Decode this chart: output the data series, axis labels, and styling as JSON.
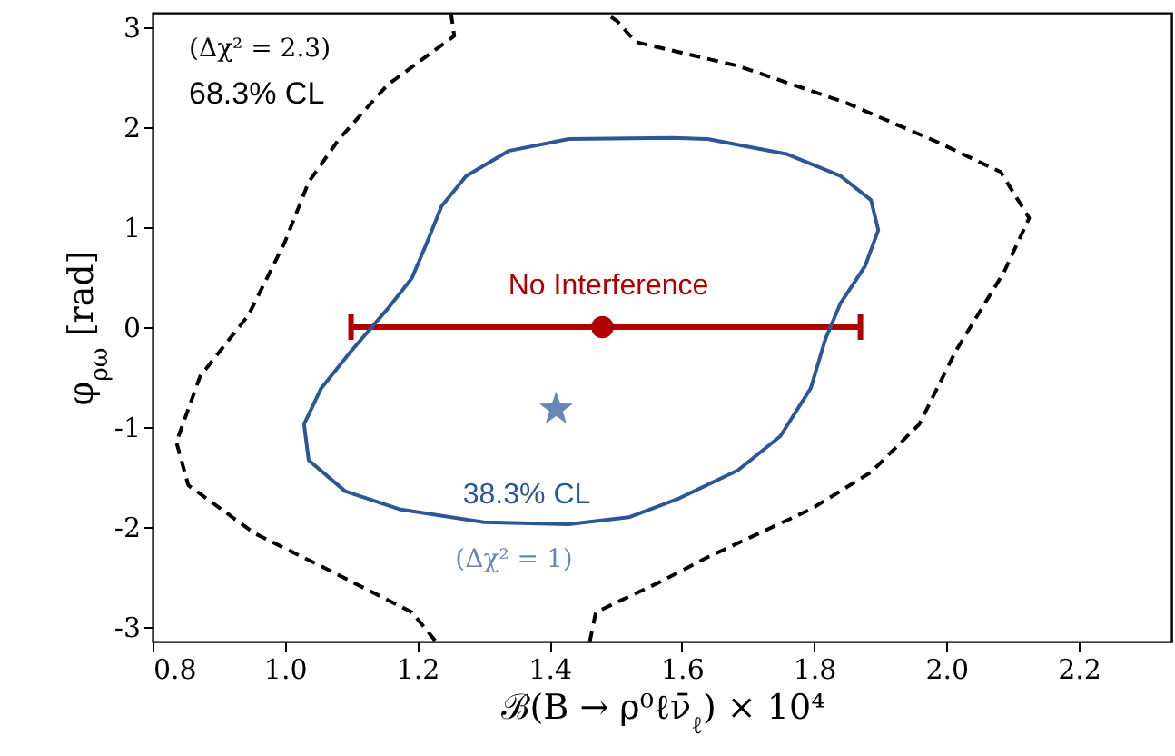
{
  "chart_data": {
    "type": "line",
    "xlabel": "ℬ(B → ρ⁰ℓν̄$_{ℓ}$) × 10⁴",
    "ylabel": "φ$_{ρω}$ [rad]",
    "xlim": [
      0.8,
      2.34
    ],
    "ylim": [
      -3.1416,
      3.1416
    ],
    "xticks": [
      0.8,
      {
        "value": 1.0,
        "label": "1.0"
      },
      1.2,
      1.4,
      1.6,
      1.8,
      {
        "value": 2.0,
        "label": "2.0"
      },
      2.2
    ],
    "yticks": [
      -3,
      -2,
      -1,
      0,
      1,
      2,
      3
    ],
    "series": [
      {
        "color": "#000000",
        "line_style": "dashed",
        "x": [
          1.251,
          1.256,
          1.155,
          1.082,
          1.036,
          1.0,
          0.945,
          0.872,
          0.836,
          0.854,
          0.954,
          1.064,
          1.192,
          1.228
        ],
        "values": [
          3.14,
          2.91,
          2.42,
          1.88,
          1.45,
          0.85,
          0.12,
          -0.49,
          -1.15,
          -1.58,
          -2.06,
          -2.42,
          -2.85,
          -3.14
        ]
      },
      {
        "color": "#000000",
        "line_style": "dashed",
        "x": [
          1.461,
          1.47,
          1.566,
          1.639,
          1.795,
          1.886,
          1.959,
          2.014,
          2.087,
          2.125,
          2.082,
          1.986,
          1.849,
          1.685,
          1.53,
          1.502,
          1.484
        ],
        "values": [
          -3.14,
          -2.85,
          -2.55,
          -2.3,
          -1.82,
          -1.45,
          -0.97,
          -0.24,
          0.55,
          1.09,
          1.55,
          1.85,
          2.24,
          2.61,
          2.85,
          3.06,
          3.14
        ]
      },
      {
        "type": "scatter",
        "color": "#b00000",
        "marker": "circle",
        "x": [
          1.48
        ],
        "values": [
          0
        ],
        "xerrors": [
          [
            1.1,
            1.87
          ]
        ]
      },
      {
        "type": "scatter",
        "color": "#6a86b8",
        "marker": "star",
        "x": [
          1.41
        ],
        "values": [
          -0.82
        ]
      }
    ],
    "annotations": [
      "(Δχ² = 2.3)",
      "68.3% CL",
      "No Interference",
      "38.3% CL",
      "(Δχ² = 1)"
    ]
  }
}
